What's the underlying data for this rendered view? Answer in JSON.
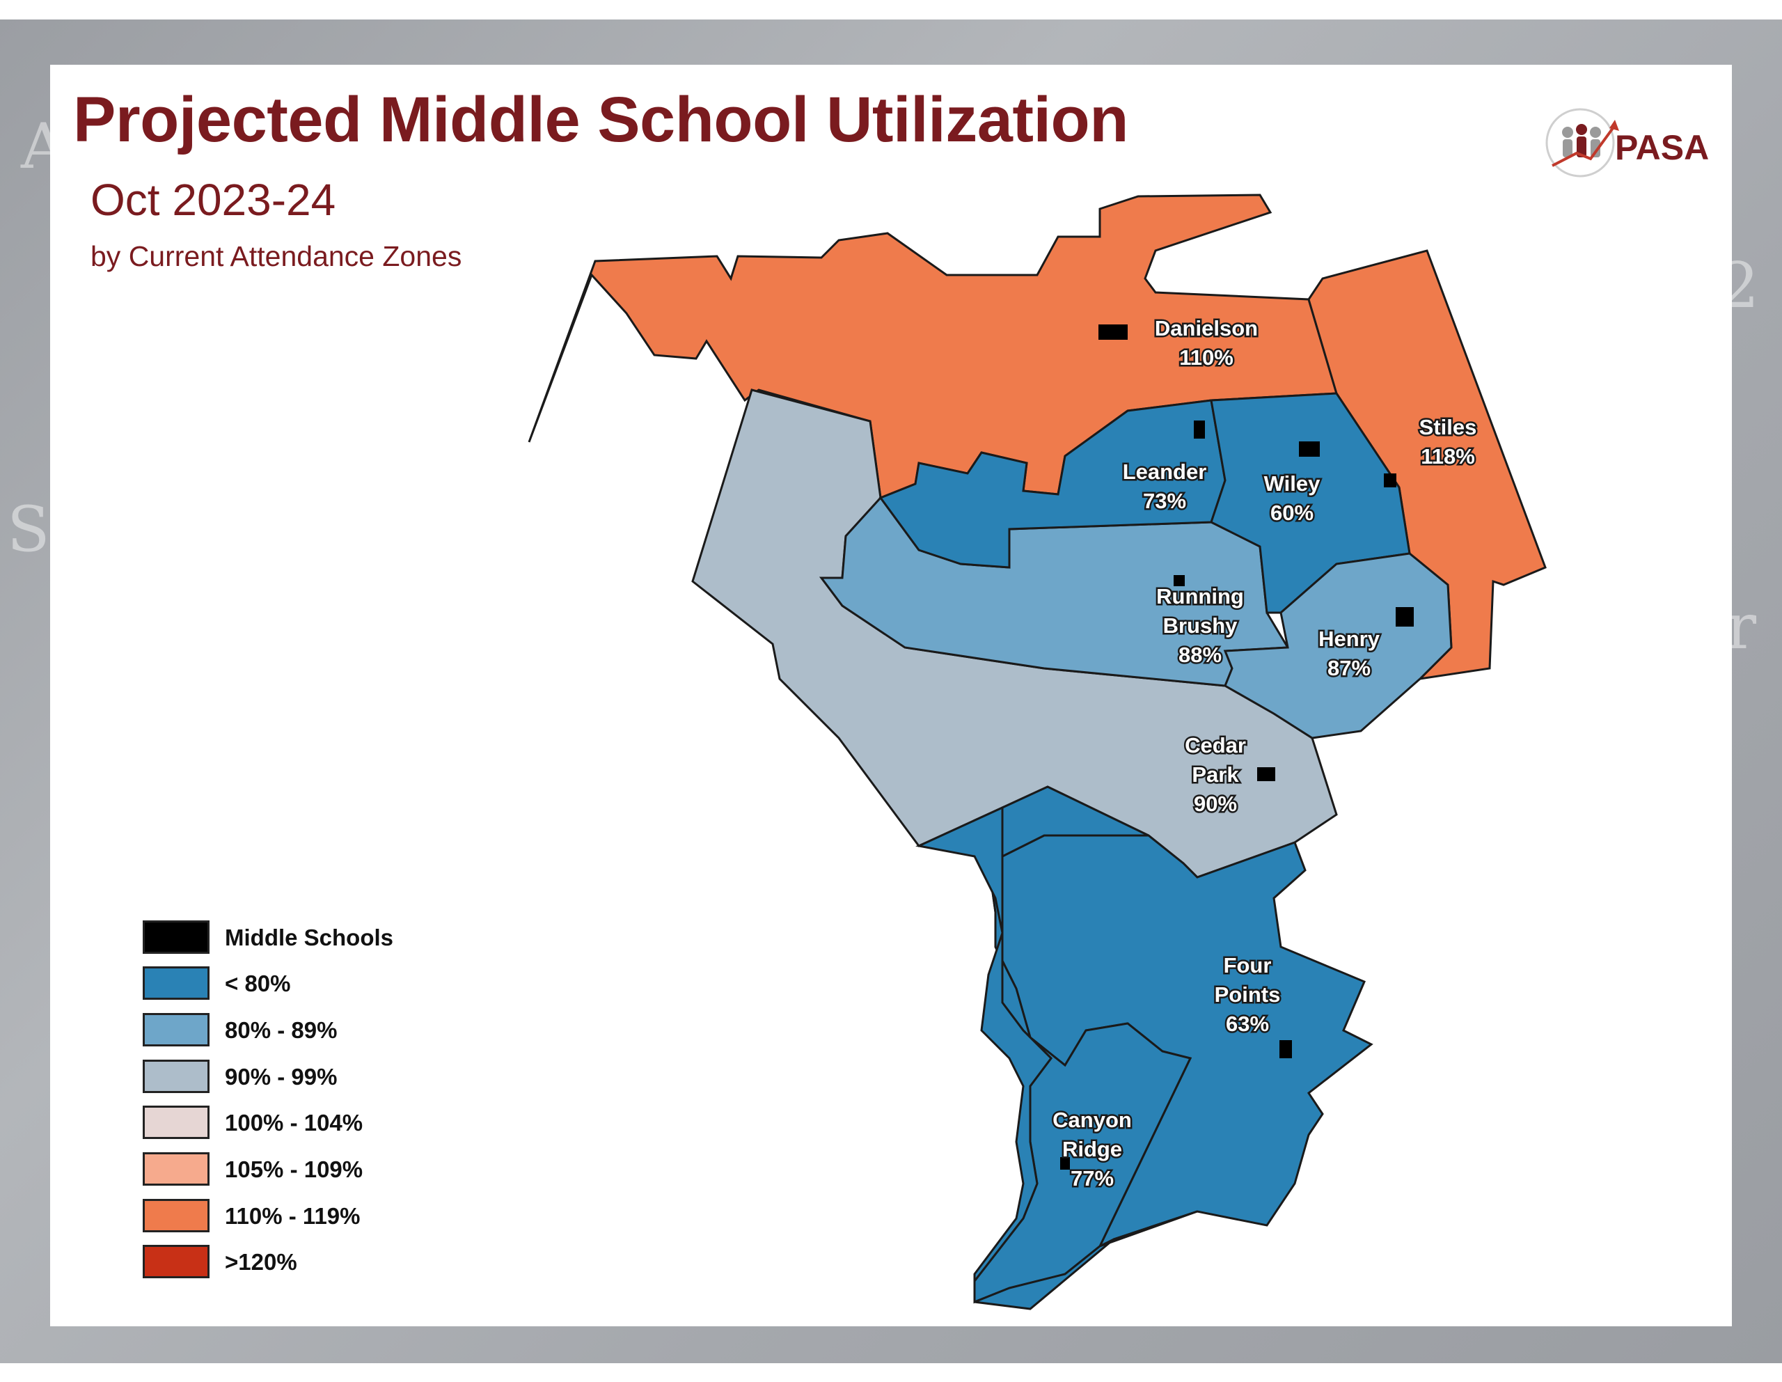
{
  "title": "Projected Middle School Utilization",
  "subtitle": "Oct 2023-24",
  "caption": "by Current Attendance Zones",
  "logo_text": "PASA",
  "zones": [
    {
      "id": "danielson",
      "lines": [
        "Danielson",
        "110%"
      ],
      "utilization": 110,
      "color": "#ef7b4c"
    },
    {
      "id": "stiles",
      "lines": [
        "Stiles",
        "118%"
      ],
      "utilization": 118,
      "color": "#ef7b4c"
    },
    {
      "id": "leander",
      "lines": [
        "Leander",
        "73%"
      ],
      "utilization": 73,
      "color": "#2a82b5"
    },
    {
      "id": "wiley",
      "lines": [
        "Wiley",
        "60%"
      ],
      "utilization": 60,
      "color": "#2a82b5"
    },
    {
      "id": "running-brushy",
      "lines": [
        "Running",
        "Brushy",
        "88%"
      ],
      "utilization": 88,
      "color": "#6ea6c9"
    },
    {
      "id": "henry",
      "lines": [
        "Henry",
        "87%"
      ],
      "utilization": 87,
      "color": "#6ea6c9"
    },
    {
      "id": "cedar-park",
      "lines": [
        "Cedar",
        "Park",
        "90%"
      ],
      "utilization": 90,
      "color": "#adbdca"
    },
    {
      "id": "four-points",
      "lines": [
        "Four",
        "Points",
        "63%"
      ],
      "utilization": 63,
      "color": "#2a82b5"
    },
    {
      "id": "canyon-ridge",
      "lines": [
        "Canyon",
        "Ridge",
        "77%"
      ],
      "utilization": 77,
      "color": "#2a82b5"
    }
  ],
  "legend": [
    {
      "label": "Middle Schools",
      "color": "#000000"
    },
    {
      "label": "< 80%",
      "color": "#2a82b5"
    },
    {
      "label": "80% - 89%",
      "color": "#6ea6c9"
    },
    {
      "label": "90% - 99%",
      "color": "#adbdca"
    },
    {
      "label": "100% - 104%",
      "color": "#e6d6d4"
    },
    {
      "label": "105% - 109%",
      "color": "#f6aa8d"
    },
    {
      "label": "110% - 119%",
      "color": "#ef7b4c"
    },
    {
      "label": ">120%",
      "color": "#c83016"
    }
  ]
}
